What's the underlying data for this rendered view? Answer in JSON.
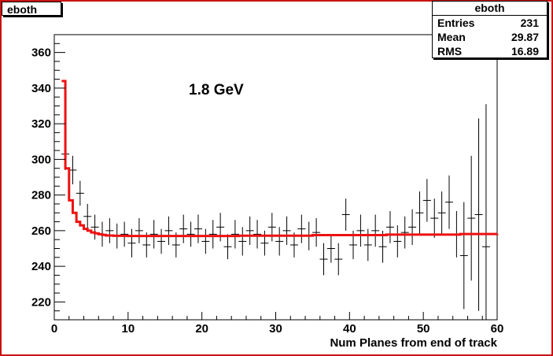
{
  "canvas": {
    "title": "eboth"
  },
  "stats": {
    "title": "eboth",
    "rows": [
      {
        "label": "Entries",
        "value": "231"
      },
      {
        "label": "Mean",
        "value": "29.87"
      },
      {
        "label": "RMS",
        "value": "16.89"
      }
    ]
  },
  "chart_data": {
    "type": "scatter",
    "title": "eboth",
    "annotation": "1.8 GeV",
    "xlabel": "Num Planes from end of track",
    "ylabel": "",
    "xlim": [
      0,
      60
    ],
    "ylim": [
      210,
      370
    ],
    "x_ticks": [
      0,
      10,
      20,
      30,
      40,
      50,
      60
    ],
    "y_ticks": [
      220,
      240,
      260,
      280,
      300,
      320,
      340,
      360
    ],
    "grid": false,
    "series": [
      {
        "points": [
          {
            "x": 1.5,
            "y": 303,
            "err": 9
          },
          {
            "x": 2.5,
            "y": 294,
            "err": 8
          },
          {
            "x": 3.5,
            "y": 281,
            "err": 7
          },
          {
            "x": 4.5,
            "y": 268,
            "err": 7
          },
          {
            "x": 5.5,
            "y": 262,
            "err": 7
          },
          {
            "x": 6.5,
            "y": 258,
            "err": 7
          },
          {
            "x": 7.5,
            "y": 260,
            "err": 7
          },
          {
            "x": 8.5,
            "y": 257,
            "err": 7
          },
          {
            "x": 9.5,
            "y": 258,
            "err": 7
          },
          {
            "x": 10.5,
            "y": 253,
            "err": 8
          },
          {
            "x": 11.5,
            "y": 260,
            "err": 7
          },
          {
            "x": 12.5,
            "y": 252,
            "err": 7
          },
          {
            "x": 13.5,
            "y": 258,
            "err": 8
          },
          {
            "x": 14.5,
            "y": 254,
            "err": 7
          },
          {
            "x": 15.5,
            "y": 260,
            "err": 8
          },
          {
            "x": 16.5,
            "y": 252,
            "err": 7
          },
          {
            "x": 17.5,
            "y": 261,
            "err": 8
          },
          {
            "x": 18.5,
            "y": 258,
            "err": 7
          },
          {
            "x": 19.5,
            "y": 261,
            "err": 8
          },
          {
            "x": 20.5,
            "y": 254,
            "err": 7
          },
          {
            "x": 21.5,
            "y": 258,
            "err": 8
          },
          {
            "x": 22.5,
            "y": 262,
            "err": 8
          },
          {
            "x": 23.5,
            "y": 251,
            "err": 7
          },
          {
            "x": 24.5,
            "y": 258,
            "err": 8
          },
          {
            "x": 25.5,
            "y": 254,
            "err": 8
          },
          {
            "x": 26.5,
            "y": 260,
            "err": 8
          },
          {
            "x": 27.5,
            "y": 258,
            "err": 8
          },
          {
            "x": 28.5,
            "y": 253,
            "err": 7
          },
          {
            "x": 29.5,
            "y": 262,
            "err": 8
          },
          {
            "x": 30.5,
            "y": 254,
            "err": 8
          },
          {
            "x": 31.5,
            "y": 260,
            "err": 8
          },
          {
            "x": 32.5,
            "y": 252,
            "err": 7
          },
          {
            "x": 33.5,
            "y": 261,
            "err": 8
          },
          {
            "x": 34.5,
            "y": 257,
            "err": 8
          },
          {
            "x": 35.5,
            "y": 259,
            "err": 8
          },
          {
            "x": 36.5,
            "y": 244,
            "err": 9
          },
          {
            "x": 37.5,
            "y": 250,
            "err": 8
          },
          {
            "x": 38.5,
            "y": 244,
            "err": 9
          },
          {
            "x": 39.5,
            "y": 269,
            "err": 9
          },
          {
            "x": 40.5,
            "y": 252,
            "err": 8
          },
          {
            "x": 41.5,
            "y": 260,
            "err": 9
          },
          {
            "x": 42.5,
            "y": 252,
            "err": 9
          },
          {
            "x": 43.5,
            "y": 260,
            "err": 9
          },
          {
            "x": 44.5,
            "y": 251,
            "err": 9
          },
          {
            "x": 45.5,
            "y": 262,
            "err": 9
          },
          {
            "x": 46.5,
            "y": 254,
            "err": 9
          },
          {
            "x": 47.5,
            "y": 259,
            "err": 9
          },
          {
            "x": 48.5,
            "y": 262,
            "err": 10
          },
          {
            "x": 49.5,
            "y": 270,
            "err": 12
          },
          {
            "x": 50.5,
            "y": 277,
            "err": 12
          },
          {
            "x": 51.5,
            "y": 267,
            "err": 11
          },
          {
            "x": 52.5,
            "y": 270,
            "err": 12
          },
          {
            "x": 53.5,
            "y": 276,
            "err": 15
          },
          {
            "x": 54.5,
            "y": 258,
            "err": 13
          },
          {
            "x": 55.5,
            "y": 246,
            "err": 30
          },
          {
            "x": 56.5,
            "y": 267,
            "err": 35
          },
          {
            "x": 57.5,
            "y": 269,
            "err": 54
          },
          {
            "x": 58.5,
            "y": 251,
            "err": 80
          }
        ]
      },
      {
        "type": "line",
        "color": "#ee1111",
        "x": [
          1,
          1.5,
          2,
          2.5,
          3,
          3.5,
          4,
          4.5,
          5,
          5.5,
          6,
          6.5,
          7,
          8,
          10,
          15,
          25,
          35,
          45,
          55,
          60
        ],
        "y": [
          344,
          295,
          277,
          270,
          265,
          263,
          261,
          260,
          259,
          258.5,
          258,
          257.6,
          257.3,
          257.1,
          257,
          257,
          257.2,
          257.5,
          257.8,
          258.1,
          258.2
        ]
      }
    ]
  }
}
